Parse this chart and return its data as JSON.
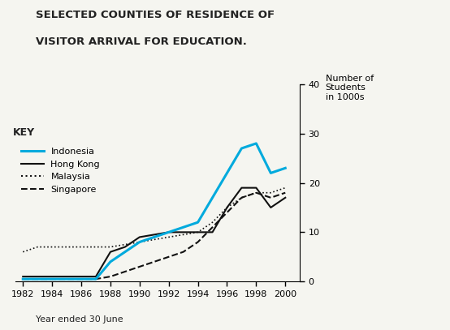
{
  "title_line1": "SELECTED COUNTIES OF RESIDENCE OF",
  "title_line2": "VISITOR ARRIVAL FOR EDUCATION.",
  "ylabel": "Number of\nStudents\nin 1000s",
  "xlabel": "Year ended 30 June",
  "key_label": "KEY",
  "years": [
    1982,
    1983,
    1984,
    1985,
    1986,
    1987,
    1988,
    1989,
    1990,
    1991,
    1992,
    1993,
    1994,
    1995,
    1996,
    1997,
    1998,
    1999,
    2000
  ],
  "indonesia": [
    0.5,
    0.5,
    0.5,
    0.5,
    0.5,
    0.5,
    4,
    6,
    8,
    9,
    10,
    11,
    12,
    17,
    22,
    27,
    28,
    22,
    23
  ],
  "hong_kong": [
    1,
    1,
    1,
    1,
    1,
    1,
    6,
    7,
    9,
    9.5,
    10,
    10,
    10,
    10,
    15,
    19,
    19,
    15,
    17
  ],
  "malaysia": [
    6,
    7,
    7,
    7,
    7,
    7,
    7,
    7.5,
    8,
    8.5,
    9,
    9.5,
    10,
    12,
    15,
    17,
    18,
    18,
    19
  ],
  "singapore": [
    0.5,
    0.5,
    0.5,
    0.5,
    0.5,
    0.5,
    1,
    2,
    3,
    4,
    5,
    6,
    8,
    11,
    14,
    17,
    18,
    17,
    18
  ],
  "ylim": [
    0,
    40
  ],
  "yticks": [
    0,
    10,
    20,
    30,
    40
  ],
  "xticks": [
    1982,
    1984,
    1986,
    1988,
    1990,
    1992,
    1994,
    1996,
    1998,
    2000
  ],
  "bg_color": "#f5f5f0",
  "indonesia_color": "#00aadd",
  "hong_kong_color": "#111111",
  "malaysia_color": "#111111",
  "singapore_color": "#111111"
}
